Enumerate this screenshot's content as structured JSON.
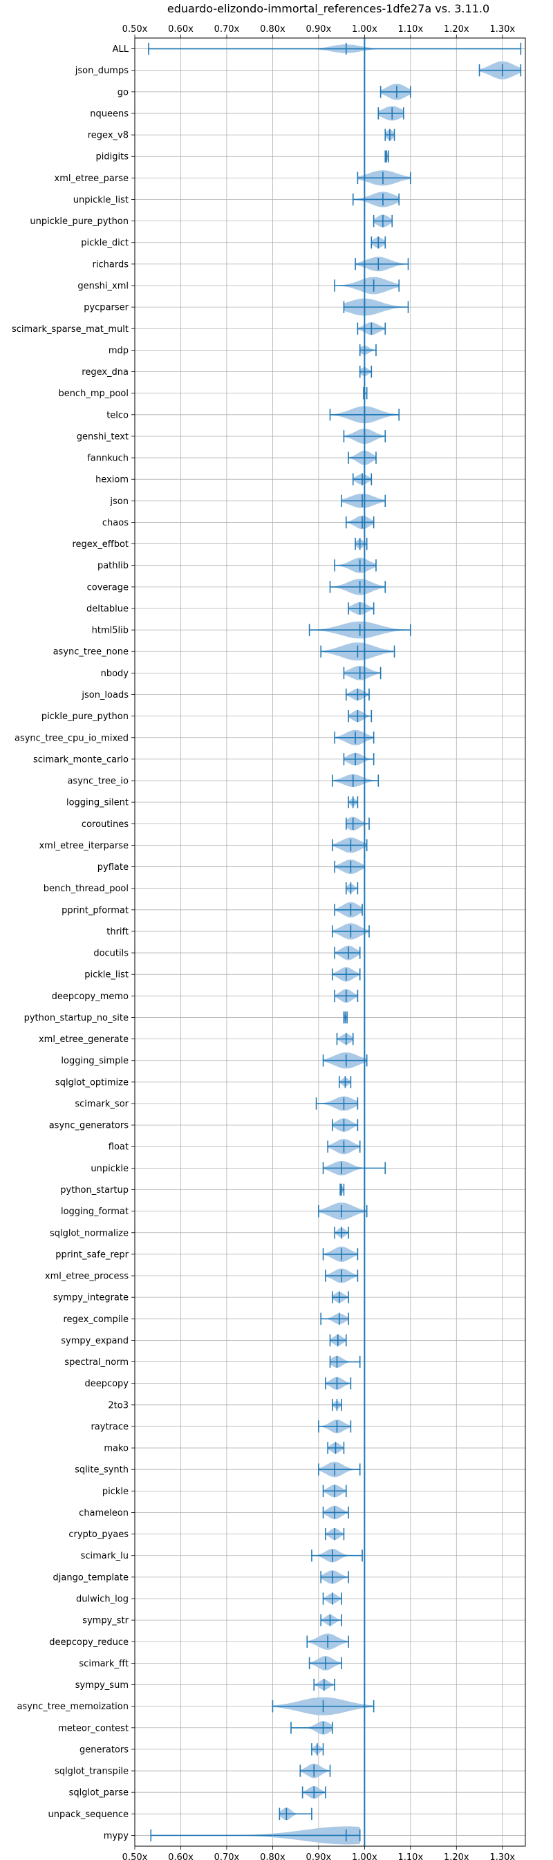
{
  "chart_data": {
    "type": "violin",
    "title": "eduardo-elizondo-immortal_references-1dfe27a vs. 3.11.0",
    "xlim": [
      0.5,
      1.35
    ],
    "x_ticks": [
      0.5,
      0.6,
      0.7,
      0.8,
      0.9,
      1.0,
      1.1,
      1.2,
      1.3
    ],
    "x_tick_labels": [
      "0.50x",
      "0.60x",
      "0.70x",
      "0.80x",
      "0.90x",
      "1.00x",
      "1.10x",
      "1.20x",
      "1.30x"
    ],
    "reference_line": 1.0,
    "grid": true,
    "color": "#1f77b4",
    "fill_color": "#a9c9e6",
    "benchmarks": [
      {
        "name": "ALL",
        "min": 0.53,
        "max": 1.34,
        "median": 0.96,
        "spread": 0.03,
        "width": 0.5
      },
      {
        "name": "json_dumps",
        "min": 1.25,
        "max": 1.34,
        "median": 1.3,
        "spread": 0.025,
        "width": 1.0
      },
      {
        "name": "go",
        "min": 1.035,
        "max": 1.1,
        "median": 1.07,
        "spread": 0.02,
        "width": 0.9
      },
      {
        "name": "nqueens",
        "min": 1.03,
        "max": 1.085,
        "median": 1.06,
        "spread": 0.02,
        "width": 0.8
      },
      {
        "name": "regex_v8",
        "min": 1.045,
        "max": 1.065,
        "median": 1.055,
        "spread": 0.007,
        "width": 0.6
      },
      {
        "name": "pidigits",
        "min": 1.045,
        "max": 1.052,
        "median": 1.048,
        "spread": 0.003,
        "width": 0.5
      },
      {
        "name": "xml_etree_parse",
        "min": 0.985,
        "max": 1.1,
        "median": 1.04,
        "spread": 0.03,
        "width": 0.85
      },
      {
        "name": "unpickle_list",
        "min": 0.975,
        "max": 1.075,
        "median": 1.04,
        "spread": 0.025,
        "width": 0.85
      },
      {
        "name": "unpickle_pure_python",
        "min": 1.02,
        "max": 1.06,
        "median": 1.04,
        "spread": 0.013,
        "width": 0.7
      },
      {
        "name": "pickle_dict",
        "min": 1.015,
        "max": 1.045,
        "median": 1.03,
        "spread": 0.01,
        "width": 0.6
      },
      {
        "name": "richards",
        "min": 0.98,
        "max": 1.095,
        "median": 1.03,
        "spread": 0.025,
        "width": 0.8
      },
      {
        "name": "genshi_xml",
        "min": 0.935,
        "max": 1.075,
        "median": 1.02,
        "spread": 0.03,
        "width": 0.95
      },
      {
        "name": "pycparser",
        "min": 0.955,
        "max": 1.095,
        "median": 1.0,
        "spread": 0.035,
        "width": 0.95
      },
      {
        "name": "scimark_sparse_mat_mult",
        "min": 0.985,
        "max": 1.045,
        "median": 1.015,
        "spread": 0.015,
        "width": 0.7
      },
      {
        "name": "mdp",
        "min": 0.99,
        "max": 1.025,
        "median": 1.0,
        "spread": 0.01,
        "width": 0.5
      },
      {
        "name": "regex_dna",
        "min": 0.99,
        "max": 1.015,
        "median": 1.0,
        "spread": 0.008,
        "width": 0.5
      },
      {
        "name": "bench_mp_pool",
        "min": 0.998,
        "max": 1.005,
        "median": 1.0,
        "spread": 0.002,
        "width": 0.2
      },
      {
        "name": "telco",
        "min": 0.925,
        "max": 1.075,
        "median": 1.0,
        "spread": 0.03,
        "width": 0.95
      },
      {
        "name": "genshi_text",
        "min": 0.955,
        "max": 1.045,
        "median": 1.0,
        "spread": 0.02,
        "width": 0.85
      },
      {
        "name": "fannkuch",
        "min": 0.965,
        "max": 1.025,
        "median": 1.0,
        "spread": 0.015,
        "width": 0.8
      },
      {
        "name": "hexiom",
        "min": 0.975,
        "max": 1.015,
        "median": 0.995,
        "spread": 0.012,
        "width": 0.6
      },
      {
        "name": "json",
        "min": 0.95,
        "max": 1.045,
        "median": 0.995,
        "spread": 0.025,
        "width": 0.8
      },
      {
        "name": "chaos",
        "min": 0.96,
        "max": 1.02,
        "median": 0.995,
        "spread": 0.015,
        "width": 0.75
      },
      {
        "name": "regex_effbot",
        "min": 0.98,
        "max": 1.005,
        "median": 0.99,
        "spread": 0.008,
        "width": 0.5
      },
      {
        "name": "pathlib",
        "min": 0.935,
        "max": 1.025,
        "median": 0.99,
        "spread": 0.02,
        "width": 0.85
      },
      {
        "name": "coverage",
        "min": 0.925,
        "max": 1.045,
        "median": 0.99,
        "spread": 0.025,
        "width": 0.9
      },
      {
        "name": "deltablue",
        "min": 0.965,
        "max": 1.02,
        "median": 0.99,
        "spread": 0.015,
        "width": 0.7
      },
      {
        "name": "html5lib",
        "min": 0.88,
        "max": 1.1,
        "median": 0.99,
        "spread": 0.04,
        "width": 0.95
      },
      {
        "name": "async_tree_none",
        "min": 0.905,
        "max": 1.065,
        "median": 0.985,
        "spread": 0.035,
        "width": 1.0
      },
      {
        "name": "nbody",
        "min": 0.955,
        "max": 1.035,
        "median": 0.99,
        "spread": 0.02,
        "width": 0.8
      },
      {
        "name": "json_loads",
        "min": 0.96,
        "max": 1.01,
        "median": 0.985,
        "spread": 0.013,
        "width": 0.65
      },
      {
        "name": "pickle_pure_python",
        "min": 0.965,
        "max": 1.015,
        "median": 0.985,
        "spread": 0.012,
        "width": 0.65
      },
      {
        "name": "async_tree_cpu_io_mixed",
        "min": 0.935,
        "max": 1.02,
        "median": 0.98,
        "spread": 0.02,
        "width": 0.85
      },
      {
        "name": "scimark_monte_carlo",
        "min": 0.955,
        "max": 1.02,
        "median": 0.98,
        "spread": 0.015,
        "width": 0.7
      },
      {
        "name": "async_tree_io",
        "min": 0.93,
        "max": 1.03,
        "median": 0.975,
        "spread": 0.02,
        "width": 0.7
      },
      {
        "name": "logging_silent",
        "min": 0.965,
        "max": 0.985,
        "median": 0.975,
        "spread": 0.006,
        "width": 0.45
      },
      {
        "name": "coroutines",
        "min": 0.96,
        "max": 1.01,
        "median": 0.975,
        "spread": 0.014,
        "width": 0.75
      },
      {
        "name": "xml_etree_iterparse",
        "min": 0.93,
        "max": 1.005,
        "median": 0.97,
        "spread": 0.02,
        "width": 0.85
      },
      {
        "name": "pyflate",
        "min": 0.935,
        "max": 1.0,
        "median": 0.97,
        "spread": 0.018,
        "width": 0.8
      },
      {
        "name": "bench_thread_pool",
        "min": 0.96,
        "max": 0.985,
        "median": 0.97,
        "spread": 0.007,
        "width": 0.5
      },
      {
        "name": "pprint_pformat",
        "min": 0.935,
        "max": 0.995,
        "median": 0.97,
        "spread": 0.017,
        "width": 0.85
      },
      {
        "name": "thrift",
        "min": 0.93,
        "max": 1.01,
        "median": 0.97,
        "spread": 0.02,
        "width": 0.9
      },
      {
        "name": "docutils",
        "min": 0.935,
        "max": 0.99,
        "median": 0.965,
        "spread": 0.015,
        "width": 0.8
      },
      {
        "name": "pickle_list",
        "min": 0.93,
        "max": 0.99,
        "median": 0.96,
        "spread": 0.015,
        "width": 0.8
      },
      {
        "name": "deepcopy_memo",
        "min": 0.935,
        "max": 0.985,
        "median": 0.96,
        "spread": 0.013,
        "width": 0.75
      },
      {
        "name": "python_startup_no_site",
        "min": 0.955,
        "max": 0.962,
        "median": 0.958,
        "spread": 0.003,
        "width": 0.4
      },
      {
        "name": "xml_etree_generate",
        "min": 0.94,
        "max": 0.975,
        "median": 0.96,
        "spread": 0.01,
        "width": 0.6
      },
      {
        "name": "logging_simple",
        "min": 0.91,
        "max": 1.005,
        "median": 0.96,
        "spread": 0.025,
        "width": 0.9
      },
      {
        "name": "sqlglot_optimize",
        "min": 0.945,
        "max": 0.97,
        "median": 0.958,
        "spread": 0.007,
        "width": 0.5
      },
      {
        "name": "scimark_sor",
        "min": 0.895,
        "max": 0.985,
        "median": 0.955,
        "spread": 0.02,
        "width": 0.8
      },
      {
        "name": "async_generators",
        "min": 0.93,
        "max": 0.985,
        "median": 0.955,
        "spread": 0.015,
        "width": 0.75
      },
      {
        "name": "float",
        "min": 0.92,
        "max": 0.99,
        "median": 0.955,
        "spread": 0.018,
        "width": 0.85
      },
      {
        "name": "unpickle",
        "min": 0.91,
        "max": 1.045,
        "median": 0.95,
        "spread": 0.02,
        "width": 0.8
      },
      {
        "name": "python_startup",
        "min": 0.947,
        "max": 0.955,
        "median": 0.95,
        "spread": 0.003,
        "width": 0.45
      },
      {
        "name": "logging_format",
        "min": 0.9,
        "max": 1.005,
        "median": 0.95,
        "spread": 0.025,
        "width": 0.95
      },
      {
        "name": "sqlglot_normalize",
        "min": 0.935,
        "max": 0.965,
        "median": 0.95,
        "spread": 0.008,
        "width": 0.55
      },
      {
        "name": "pprint_safe_repr",
        "min": 0.91,
        "max": 0.985,
        "median": 0.95,
        "spread": 0.018,
        "width": 0.85
      },
      {
        "name": "xml_etree_process",
        "min": 0.915,
        "max": 0.985,
        "median": 0.95,
        "spread": 0.017,
        "width": 0.8
      },
      {
        "name": "sympy_integrate",
        "min": 0.93,
        "max": 0.965,
        "median": 0.945,
        "spread": 0.01,
        "width": 0.6
      },
      {
        "name": "regex_compile",
        "min": 0.905,
        "max": 0.965,
        "median": 0.945,
        "spread": 0.012,
        "width": 0.6
      },
      {
        "name": "sympy_expand",
        "min": 0.925,
        "max": 0.96,
        "median": 0.942,
        "spread": 0.01,
        "width": 0.6
      },
      {
        "name": "spectral_norm",
        "min": 0.925,
        "max": 0.99,
        "median": 0.94,
        "spread": 0.012,
        "width": 0.65
      },
      {
        "name": "deepcopy",
        "min": 0.915,
        "max": 0.97,
        "median": 0.94,
        "spread": 0.013,
        "width": 0.7
      },
      {
        "name": "2to3",
        "min": 0.93,
        "max": 0.95,
        "median": 0.94,
        "spread": 0.006,
        "width": 0.45
      },
      {
        "name": "raytrace",
        "min": 0.9,
        "max": 0.97,
        "median": 0.94,
        "spread": 0.015,
        "width": 0.75
      },
      {
        "name": "mako",
        "min": 0.92,
        "max": 0.955,
        "median": 0.937,
        "spread": 0.01,
        "width": 0.6
      },
      {
        "name": "sqlite_synth",
        "min": 0.9,
        "max": 0.99,
        "median": 0.935,
        "spread": 0.018,
        "width": 0.85
      },
      {
        "name": "pickle",
        "min": 0.91,
        "max": 0.96,
        "median": 0.935,
        "spread": 0.013,
        "width": 0.7
      },
      {
        "name": "chameleon",
        "min": 0.91,
        "max": 0.965,
        "median": 0.935,
        "spread": 0.014,
        "width": 0.75
      },
      {
        "name": "crypto_pyaes",
        "min": 0.915,
        "max": 0.955,
        "median": 0.935,
        "spread": 0.01,
        "width": 0.65
      },
      {
        "name": "scimark_lu",
        "min": 0.885,
        "max": 0.995,
        "median": 0.93,
        "spread": 0.015,
        "width": 0.75
      },
      {
        "name": "django_template",
        "min": 0.905,
        "max": 0.965,
        "median": 0.93,
        "spread": 0.015,
        "width": 0.75
      },
      {
        "name": "dulwich_log",
        "min": 0.91,
        "max": 0.95,
        "median": 0.93,
        "spread": 0.01,
        "width": 0.6
      },
      {
        "name": "sympy_str",
        "min": 0.905,
        "max": 0.95,
        "median": 0.925,
        "spread": 0.01,
        "width": 0.6
      },
      {
        "name": "deepcopy_reduce",
        "min": 0.875,
        "max": 0.965,
        "median": 0.92,
        "spread": 0.02,
        "width": 0.9
      },
      {
        "name": "scimark_fft",
        "min": 0.88,
        "max": 0.95,
        "median": 0.915,
        "spread": 0.016,
        "width": 0.8
      },
      {
        "name": "sympy_sum",
        "min": 0.89,
        "max": 0.935,
        "median": 0.912,
        "spread": 0.01,
        "width": 0.6
      },
      {
        "name": "async_tree_memoization",
        "min": 0.8,
        "max": 1.02,
        "median": 0.91,
        "spread": 0.05,
        "width": 1.0
      },
      {
        "name": "meteor_contest",
        "min": 0.84,
        "max": 0.93,
        "median": 0.91,
        "spread": 0.015,
        "width": 0.75
      },
      {
        "name": "generators",
        "min": 0.885,
        "max": 0.91,
        "median": 0.897,
        "spread": 0.007,
        "width": 0.5
      },
      {
        "name": "sqlglot_transpile",
        "min": 0.86,
        "max": 0.925,
        "median": 0.89,
        "spread": 0.015,
        "width": 0.8
      },
      {
        "name": "sqlglot_parse",
        "min": 0.865,
        "max": 0.915,
        "median": 0.89,
        "spread": 0.012,
        "width": 0.7
      },
      {
        "name": "unpack_sequence",
        "min": 0.815,
        "max": 0.885,
        "median": 0.83,
        "spread": 0.01,
        "width": 0.7
      },
      {
        "name": "mypy",
        "min": 0.535,
        "max": 0.99,
        "median": 0.96,
        "spread": 0.09,
        "width": 1.0
      }
    ]
  }
}
